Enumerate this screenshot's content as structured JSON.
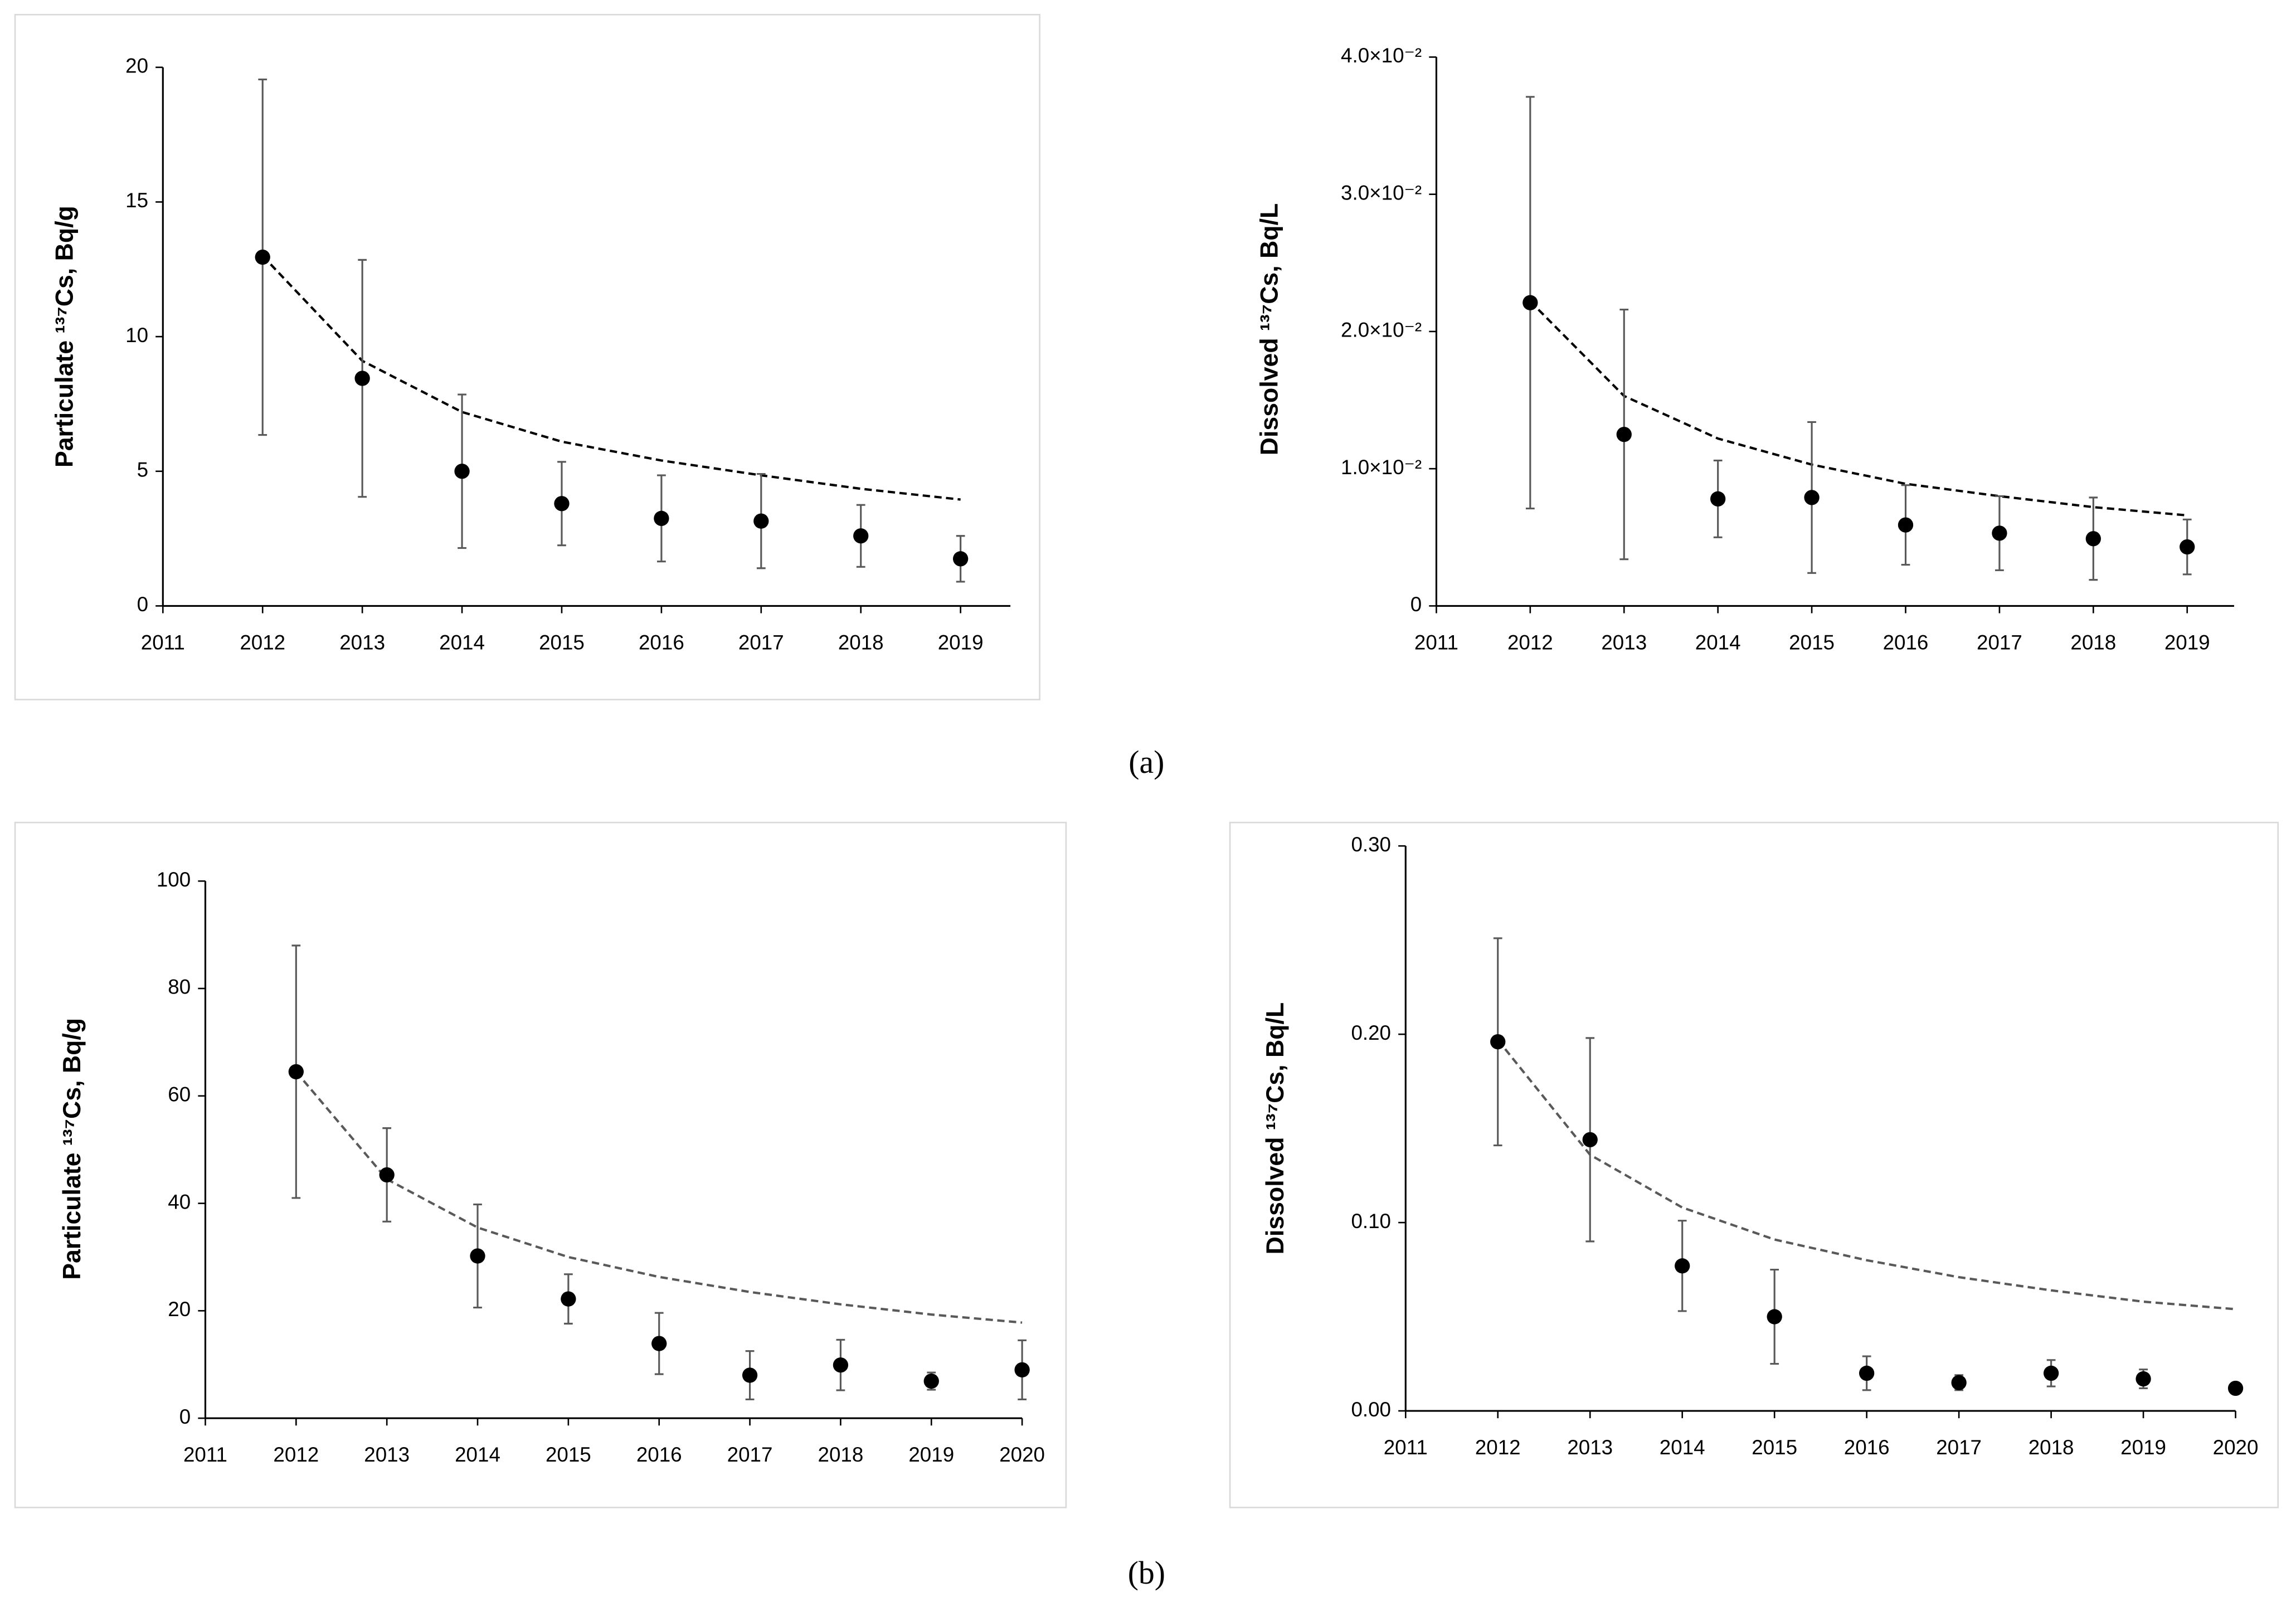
{
  "chart_data": [
    {
      "type": "scatter",
      "ylabel": "Particulate ¹³⁷Cs, Bq/g",
      "x": [
        2012,
        2013,
        2014,
        2015,
        2016,
        2017,
        2018,
        2019
      ],
      "values": [
        12.95,
        8.45,
        5.0,
        3.8,
        3.25,
        3.15,
        2.6,
        1.75
      ],
      "errors": [
        6.6,
        4.4,
        2.85,
        1.55,
        1.6,
        1.75,
        1.15,
        0.85
      ],
      "fit": [
        13.0,
        9.1,
        7.2,
        6.1,
        5.4,
        4.85,
        4.35,
        3.95
      ],
      "color": "#000000",
      "error_color": "#595959",
      "fit_color": "#000000",
      "fit_style": "dashed",
      "xlim": [
        2011,
        2019.5
      ],
      "xticks": [
        2011,
        2012,
        2013,
        2014,
        2015,
        2016,
        2017,
        2018,
        2019
      ],
      "ylim": [
        0,
        20
      ],
      "yticks": [
        0,
        5,
        10,
        15,
        20
      ]
    },
    {
      "type": "scatter",
      "ylabel": "Dissolved ¹³⁷Cs, Bq/L",
      "x": [
        2012,
        2013,
        2014,
        2015,
        2016,
        2017,
        2018,
        2019
      ],
      "values": [
        0.0221,
        0.0125,
        0.0078,
        0.0079,
        0.0059,
        0.0053,
        0.0049,
        0.0043
      ],
      "errors": [
        0.015,
        0.0091,
        0.0028,
        0.0055,
        0.0029,
        0.0027,
        0.003,
        0.002
      ],
      "fit": [
        0.0222,
        0.0153,
        0.0122,
        0.0103,
        0.0089,
        0.008,
        0.0072,
        0.0066
      ],
      "color": "#000000",
      "error_color": "#595959",
      "fit_color": "#000000",
      "fit_style": "dashed",
      "xlim": [
        2011,
        2019.5
      ],
      "xticks": [
        2011,
        2012,
        2013,
        2014,
        2015,
        2016,
        2017,
        2018,
        2019
      ],
      "ylim": [
        0,
        0.04
      ],
      "yticks": [
        0,
        {
          "value": 0.01,
          "label": "1.0×10⁻²"
        },
        {
          "value": 0.02,
          "label": "2.0×10⁻²"
        },
        {
          "value": 0.03,
          "label": "3.0×10⁻²"
        },
        {
          "value": 0.04,
          "label": "4.0×10⁻²"
        }
      ]
    },
    {
      "type": "scatter",
      "ylabel": "Particulate ¹³⁷Cs, Bq/g",
      "x": [
        2012,
        2013,
        2014,
        2015,
        2016,
        2017,
        2018,
        2019,
        2020
      ],
      "values": [
        64.5,
        45.3,
        30.2,
        22.2,
        13.9,
        8.0,
        9.9,
        6.9,
        9.0
      ],
      "errors": [
        23.5,
        8.7,
        9.6,
        4.6,
        5.7,
        4.5,
        4.7,
        1.6,
        5.5
      ],
      "fit": [
        64.5,
        44.5,
        35.5,
        30,
        26.3,
        23.5,
        21.2,
        19.3,
        17.8
      ],
      "color": "#000000",
      "error_color": "#595959",
      "fit_color": "#595959",
      "fit_style": "dashed",
      "xlim": [
        2011,
        2020
      ],
      "xticks": [
        2011,
        2012,
        2013,
        2014,
        2015,
        2016,
        2017,
        2018,
        2019,
        2020
      ],
      "ylim": [
        0,
        100
      ],
      "yticks": [
        0,
        20,
        40,
        60,
        80,
        100
      ]
    },
    {
      "type": "scatter",
      "ylabel": "Dissolved ¹³⁷Cs, Bq/L",
      "x": [
        2012,
        2013,
        2014,
        2015,
        2016,
        2017,
        2018,
        2019,
        2020
      ],
      "values": [
        0.196,
        0.144,
        0.077,
        0.05,
        0.02,
        0.015,
        0.02,
        0.017,
        0.012
      ],
      "errors": [
        0.055,
        0.054,
        0.024,
        0.025,
        0.009,
        0.004,
        0.007,
        0.005,
        0.002
      ],
      "fit": [
        0.197,
        0.136,
        0.108,
        0.091,
        0.08,
        0.071,
        0.064,
        0.058,
        0.054
      ],
      "color": "#000000",
      "error_color": "#595959",
      "fit_color": "#595959",
      "fit_style": "dashed",
      "xlim": [
        2011,
        2020
      ],
      "xticks": [
        2011,
        2012,
        2013,
        2014,
        2015,
        2016,
        2017,
        2018,
        2019,
        2020
      ],
      "ylim": [
        0,
        0.3
      ],
      "yticks": [
        {
          "value": 0,
          "label": "0.00"
        },
        {
          "value": 0.1,
          "label": "0.10"
        },
        {
          "value": 0.2,
          "label": "0.20"
        },
        {
          "value": 0.3,
          "label": "0.30"
        }
      ]
    }
  ],
  "panel_labels": [
    "(a)",
    "(b)"
  ]
}
